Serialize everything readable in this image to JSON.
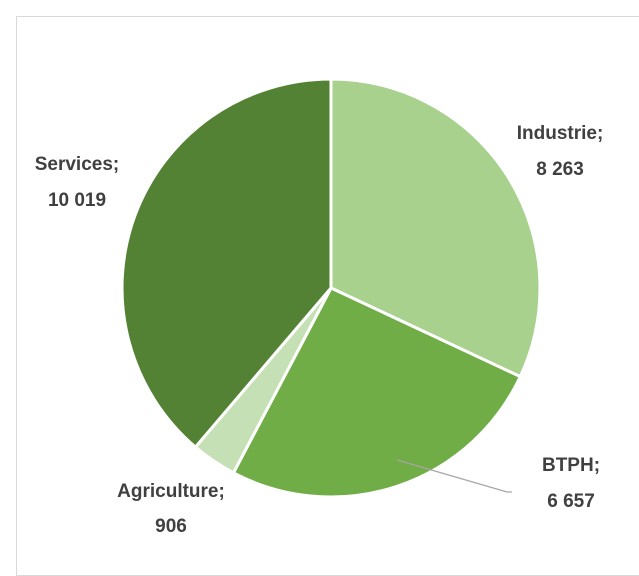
{
  "chart_data": {
    "type": "pie",
    "title": "",
    "slices": [
      {
        "name": "Industrie",
        "value": 8263,
        "value_label": "8 263",
        "color": "#a9d18e"
      },
      {
        "name": "BTPH",
        "value": 6657,
        "value_label": "6 657",
        "color": "#70ad47"
      },
      {
        "name": "Agriculture",
        "value": 906,
        "value_label": "906",
        "color": "#c5e0b4"
      },
      {
        "name": "Services",
        "value": 10019,
        "value_label": "10 019",
        "color": "#548235"
      }
    ],
    "start_angle_deg": 0,
    "direction": "clockwise",
    "slice_border_color": "#ffffff",
    "label_color": "#404040",
    "leader_line_color": "#a6a6a6",
    "legend": "none"
  }
}
